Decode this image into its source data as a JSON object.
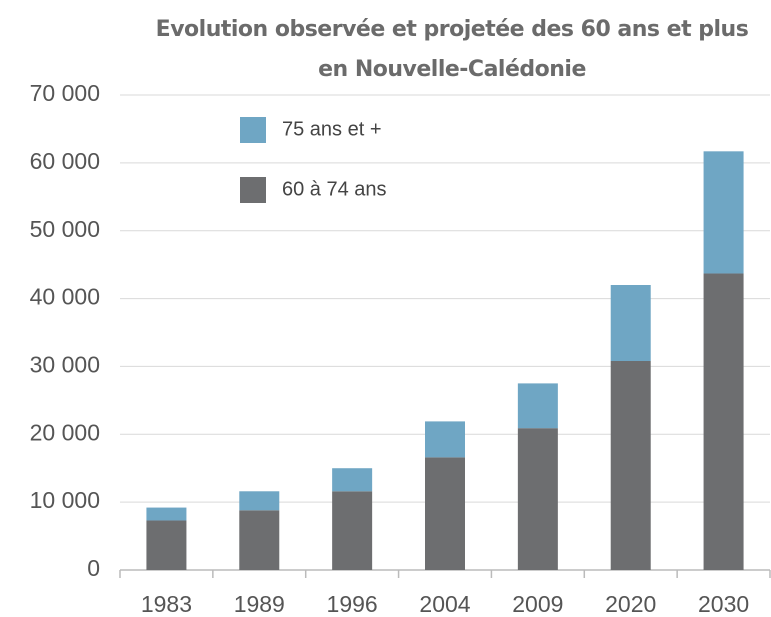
{
  "chart_data": {
    "type": "stacked_bar",
    "title": [
      "Evolution observée et projetée des 60 ans et plus",
      "en Nouvelle-Calédonie"
    ],
    "categories": [
      "1983",
      "1989",
      "1996",
      "2004",
      "2009",
      "2020",
      "2030"
    ],
    "series": [
      {
        "name": "60 à 74 ans",
        "color": "#6d6e70",
        "values": [
          7300,
          8800,
          11600,
          16600,
          20900,
          30800,
          43700
        ]
      },
      {
        "name": "75 ans et +",
        "color": "#6fa6c4",
        "values": [
          1900,
          2800,
          3400,
          5300,
          6600,
          11200,
          18000
        ]
      }
    ],
    "ylim": [
      0,
      70000
    ],
    "yticks": [
      0,
      {
        "value": 10000,
        "label": "10 000"
      },
      {
        "value": 20000,
        "label": "20 000"
      },
      {
        "value": 30000,
        "label": "30 000"
      },
      {
        "value": 40000,
        "label": "40 000"
      },
      {
        "value": 50000,
        "label": "50 000"
      },
      {
        "value": 60000,
        "label": "60 000"
      },
      {
        "value": 70000,
        "label": "70 000"
      }
    ],
    "grid": true
  }
}
